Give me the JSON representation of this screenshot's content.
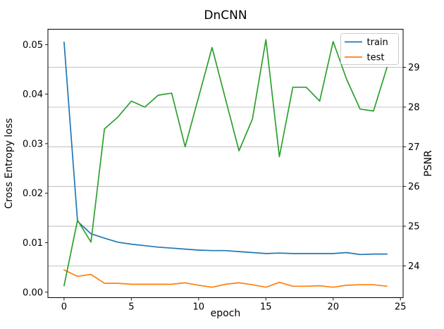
{
  "chart_data": {
    "type": "line",
    "title": "DnCNN",
    "xlabel": "epoch",
    "ylabel_left": "Cross Entropy loss",
    "ylabel_right": "PSNR",
    "x": [
      0,
      1,
      2,
      3,
      4,
      5,
      6,
      7,
      8,
      9,
      10,
      11,
      12,
      13,
      14,
      15,
      16,
      17,
      18,
      19,
      20,
      21,
      22,
      23,
      24
    ],
    "series": [
      {
        "name": "train",
        "axis": "left",
        "color": "#1f77b4",
        "values": [
          0.0505,
          0.0143,
          0.0118,
          0.0109,
          0.0101,
          0.0097,
          0.0094,
          0.0091,
          0.0089,
          0.0087,
          0.0085,
          0.0084,
          0.0084,
          0.0082,
          0.008,
          0.0078,
          0.0079,
          0.0078,
          0.0078,
          0.0078,
          0.0078,
          0.008,
          0.0076,
          0.0077,
          0.0077
        ]
      },
      {
        "name": "test",
        "axis": "left",
        "color": "#ff7f0e",
        "values": [
          0.0045,
          0.0032,
          0.0036,
          0.0018,
          0.0018,
          0.0016,
          0.0016,
          0.0016,
          0.0016,
          0.0019,
          0.0014,
          0.001,
          0.0016,
          0.0019,
          0.0015,
          0.001,
          0.002,
          0.0012,
          0.0012,
          0.0013,
          0.001,
          0.0014,
          0.0015,
          0.0015,
          0.0012
        ]
      },
      {
        "name": "PSNR",
        "axis": "right",
        "color": "#2ca02c",
        "values": [
          23.5,
          25.15,
          24.6,
          27.45,
          27.75,
          28.15,
          28.0,
          28.3,
          28.35,
          27.0,
          28.25,
          29.5,
          28.2,
          26.9,
          27.7,
          29.7,
          26.75,
          28.5,
          28.5,
          28.15,
          29.65,
          28.7,
          27.95,
          27.9,
          29.0
        ]
      }
    ],
    "legend": {
      "position": "upper right",
      "entries": [
        "train",
        "test"
      ]
    },
    "axes": {
      "x": {
        "lim": [
          -1.2,
          25.2
        ],
        "ticks": [
          0,
          5,
          10,
          15,
          20,
          25
        ]
      },
      "left": {
        "lim": [
          -0.0011,
          0.0531
        ],
        "tick_values": [
          0.0,
          0.01,
          0.02,
          0.03,
          0.04,
          0.05
        ],
        "tick_labels": [
          "0.00",
          "0.01",
          "0.02",
          "0.03",
          "0.04",
          "0.05"
        ],
        "label_color": "#000000"
      },
      "right": {
        "lim": [
          23.2,
          29.96
        ],
        "tick_values": [
          24,
          25,
          26,
          27,
          28,
          29
        ],
        "tick_labels": [
          "24",
          "25",
          "26",
          "27",
          "28",
          "29"
        ],
        "label_color": "#2ca02c"
      }
    },
    "grid": {
      "on": true,
      "follows_axis": "right",
      "color": "#b0b0b0"
    },
    "colors": {
      "spine": "#000000",
      "background": "#ffffff"
    }
  }
}
